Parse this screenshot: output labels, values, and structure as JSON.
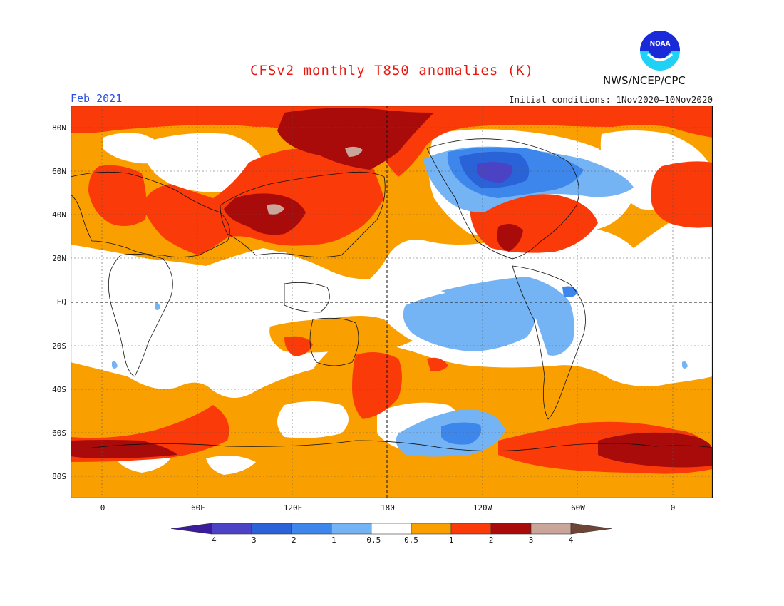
{
  "header": {
    "title": "CFSv2 monthly T850 anomalies (K)",
    "period": "Feb 2021",
    "initial_conditions": "Initial conditions: 1Nov2020–10Nov2020",
    "agency": "NWS/NCEP/CPC",
    "logo_text": "NOAA"
  },
  "map": {
    "variable": "T850 anomaly",
    "units": "K",
    "projection": "cylindrical equidistant, Pacific-centered",
    "lon_range": [
      -20,
      20
    ],
    "lat_range": [
      -90,
      90
    ],
    "lat_labels": [
      "80N",
      "60N",
      "40N",
      "20N",
      "EQ",
      "20S",
      "40S",
      "60S",
      "80S"
    ],
    "lon_labels": [
      "0",
      "60E",
      "120E",
      "180",
      "120W",
      "60W",
      "0"
    ],
    "reference_lines": [
      "equator dashed",
      "date line dashed"
    ]
  },
  "colorbar": {
    "tick_labels": [
      "−4",
      "−3",
      "−2",
      "−1",
      "−0.5",
      "0.5",
      "1",
      "2",
      "3",
      "4"
    ],
    "bins": [
      {
        "range": "< -4",
        "color": "#3a1c9c"
      },
      {
        "range": "-4 to -3",
        "color": "#4b42c6"
      },
      {
        "range": "-3 to -2",
        "color": "#2a62d8"
      },
      {
        "range": "-2 to -1",
        "color": "#3d87ec"
      },
      {
        "range": "-1 to -0.5",
        "color": "#74b3f4"
      },
      {
        "range": "-0.5 to 0.5",
        "color": "#ffffff"
      },
      {
        "range": "0.5 to 1",
        "color": "#f9a000"
      },
      {
        "range": "1 to 2",
        "color": "#fb3a0a"
      },
      {
        "range": "2 to 3",
        "color": "#a90b0b"
      },
      {
        "range": "3 to 4",
        "color": "#c9a59a"
      },
      {
        "range": "> 4",
        "color": "#6e4535"
      }
    ]
  },
  "colors": {
    "title": "#e8190f",
    "period": "#2a4de0",
    "logo_blue": "#1a2ad8",
    "logo_cyan": "#1fd1f4"
  }
}
